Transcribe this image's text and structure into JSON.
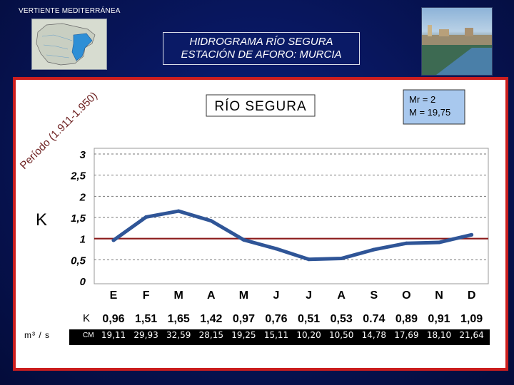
{
  "header": {
    "region": "VERTIENTE MEDITERRÁNEA"
  },
  "title": {
    "line1": "HIDROGRAMA RÍO SEGURA",
    "line2": "ESTACIÓN DE AFORO: MURCIA"
  },
  "chart": {
    "river_name": "RÍO SEGURA",
    "stats_line1": "Mr = 2",
    "stats_line2": "M = 19,75",
    "period_label": "Período (1.911-1.950)",
    "k_axis_label": "K",
    "k_row_label": "K",
    "cm_row_label": "CM",
    "unit_label": "m³ / s"
  },
  "chart_data": {
    "type": "line",
    "categories": [
      "E",
      "F",
      "M",
      "A",
      "M",
      "J",
      "J",
      "A",
      "S",
      "O",
      "N",
      "D"
    ],
    "values": [
      0.96,
      1.51,
      1.65,
      1.42,
      0.97,
      0.76,
      0.51,
      0.53,
      0.74,
      0.89,
      0.91,
      1.09
    ],
    "k_labels": [
      "0,96",
      "1,51",
      "1,65",
      "1,42",
      "0,97",
      "0,76",
      "0,51",
      "0,53",
      "0.74",
      "0,89",
      "0,91",
      "1,09"
    ],
    "cm_labels": [
      "19,11",
      "29,93",
      "32,59",
      "28,15",
      "19,25",
      "15,11",
      "10,20",
      "10,50",
      "14,78",
      "17,69",
      "18,10",
      "21,64"
    ],
    "y_ticks": [
      "0",
      "0,5",
      "1",
      "1,5",
      "2",
      "2,5",
      "3"
    ],
    "ylim": [
      0,
      3
    ],
    "reference_line": 1,
    "grid": true,
    "colors": {
      "series": "#2f5597",
      "reference": "#8b1a1a",
      "frame": "#cc1e1e"
    }
  }
}
